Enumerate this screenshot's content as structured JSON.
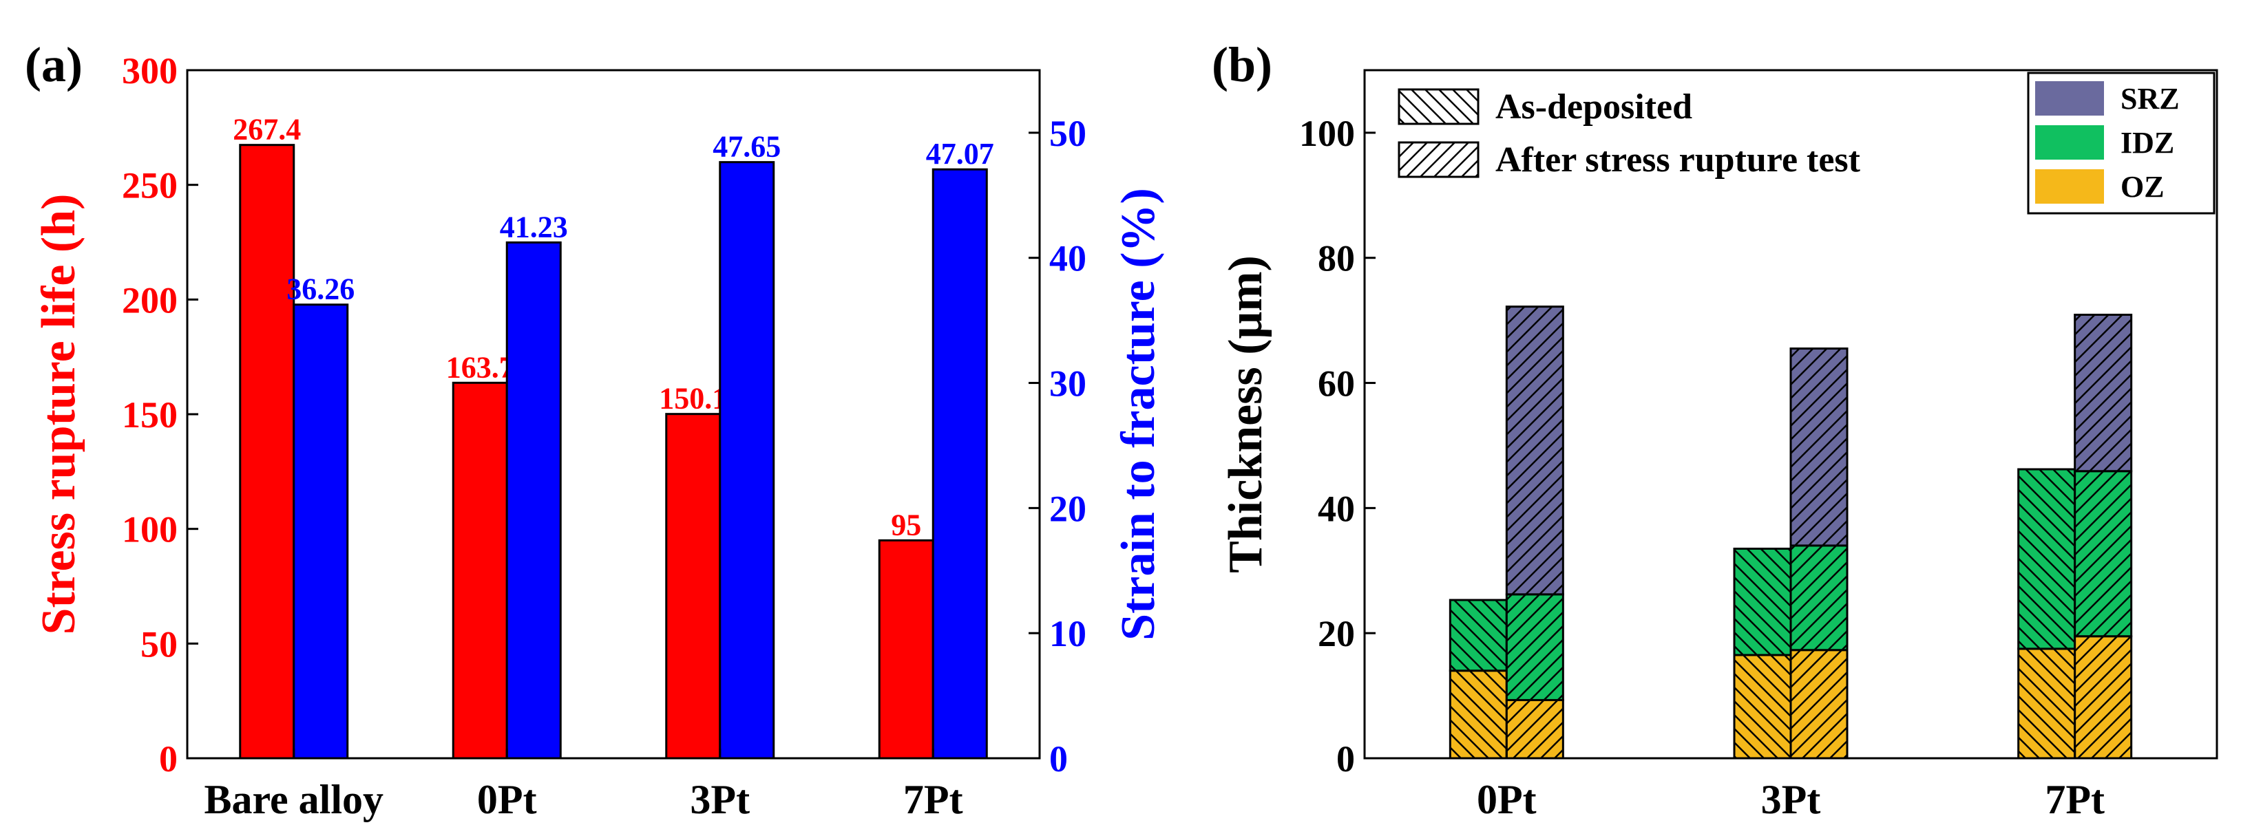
{
  "colors": {
    "stress": "#ff0000",
    "strain": "#0000ff",
    "SRZ": "#6a6a9e",
    "IDZ": "#10c060",
    "OZ": "#f5b81a"
  },
  "chart_data": [
    {
      "panel_label": "(a)",
      "type": "bar",
      "categories": [
        "Bare alloy",
        "0Pt",
        "3Pt",
        "7Pt"
      ],
      "series": [
        {
          "name": "Stress rupture life (h)",
          "axis": "left",
          "values": [
            267.4,
            163.7,
            150.1,
            95
          ],
          "labels": [
            "267.4",
            "163.7",
            "150.1",
            "95"
          ]
        },
        {
          "name": "Strain to fracture (%)",
          "axis": "right",
          "values": [
            36.26,
            41.23,
            47.65,
            47.07
          ],
          "labels": [
            "36.26",
            "41.23",
            "47.65",
            "47.07"
          ]
        }
      ],
      "ylabel_left": "Stress rupture life (h)",
      "ylabel_right": "Strain to fracture (%)",
      "ylim_left": [
        0,
        300
      ],
      "ylim_right": [
        0,
        55
      ],
      "yticks_left": [
        "0",
        "50",
        "100",
        "150",
        "200",
        "250",
        "300"
      ],
      "yticks_right": [
        "0",
        "10",
        "20",
        "30",
        "40",
        "50"
      ]
    },
    {
      "panel_label": "(b)",
      "type": "bar",
      "stacked": true,
      "categories": [
        "0Pt",
        "3Pt",
        "7Pt"
      ],
      "ylabel": "Thickness (μm)",
      "ylim": [
        0,
        110
      ],
      "yticks": [
        "0",
        "20",
        "40",
        "60",
        "80",
        "100"
      ],
      "conditions": [
        "As-deposited",
        "After stress rupture test"
      ],
      "layers": [
        "OZ",
        "IDZ",
        "SRZ"
      ],
      "series": [
        {
          "name": "As-deposited",
          "OZ": [
            14,
            16.5,
            17.5
          ],
          "IDZ": [
            11.3,
            17,
            28.7
          ],
          "SRZ": [
            0,
            0,
            0
          ]
        },
        {
          "name": "After stress rupture test",
          "OZ": [
            9.3,
            17.3,
            19.5
          ],
          "IDZ": [
            16.9,
            16.7,
            26.4
          ],
          "SRZ": [
            46,
            31.5,
            25
          ]
        }
      ],
      "legend": {
        "hatch_entries": [
          "As-deposited",
          "After stress rupture test"
        ],
        "color_entries": [
          "SRZ",
          "IDZ",
          "OZ"
        ]
      }
    }
  ]
}
